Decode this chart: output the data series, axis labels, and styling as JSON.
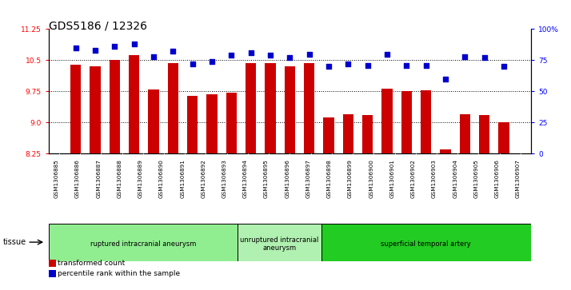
{
  "title": "GDS5186 / 12326",
  "samples": [
    "GSM1306885",
    "GSM1306886",
    "GSM1306887",
    "GSM1306888",
    "GSM1306889",
    "GSM1306890",
    "GSM1306891",
    "GSM1306892",
    "GSM1306893",
    "GSM1306894",
    "GSM1306895",
    "GSM1306896",
    "GSM1306897",
    "GSM1306898",
    "GSM1306899",
    "GSM1306900",
    "GSM1306901",
    "GSM1306902",
    "GSM1306903",
    "GSM1306904",
    "GSM1306905",
    "GSM1306906",
    "GSM1306907"
  ],
  "bar_values": [
    10.4,
    10.35,
    10.5,
    10.62,
    9.8,
    10.43,
    9.65,
    9.68,
    9.72,
    10.43,
    10.42,
    10.35,
    10.43,
    9.12,
    9.2,
    9.18,
    9.82,
    9.75,
    9.78,
    8.35,
    9.2,
    9.18,
    9.0
  ],
  "dot_values": [
    85,
    83,
    86,
    88,
    78,
    82,
    72,
    74,
    79,
    81,
    79,
    77,
    80,
    70,
    72,
    71,
    80,
    71,
    71,
    60,
    78,
    77,
    70
  ],
  "ylim_left": [
    8.25,
    11.25
  ],
  "ylim_right": [
    0,
    100
  ],
  "yticks_left": [
    8.25,
    9.0,
    9.75,
    10.5,
    11.25
  ],
  "yticks_right": [
    0,
    25,
    50,
    75,
    100
  ],
  "ytick_labels_right": [
    "0",
    "25",
    "50",
    "75",
    "100%"
  ],
  "bar_color": "#cc0000",
  "dot_color": "#0000cc",
  "groups": [
    {
      "label": "ruptured intracranial aneurysm",
      "start": 0,
      "end": 9,
      "color": "#90ee90"
    },
    {
      "label": "unruptured intracranial\naneurysm",
      "start": 9,
      "end": 13,
      "color": "#b0f0b0"
    },
    {
      "label": "superficial temporal artery",
      "start": 13,
      "end": 23,
      "color": "#22cc22"
    }
  ],
  "legend_bar_label": "transformed count",
  "legend_dot_label": "percentile rank within the sample",
  "tissue_label": "tissue",
  "xticklabel_bg": "#d0d0d0",
  "title_fontsize": 10,
  "tick_fontsize": 6.5,
  "bar_width": 0.55
}
